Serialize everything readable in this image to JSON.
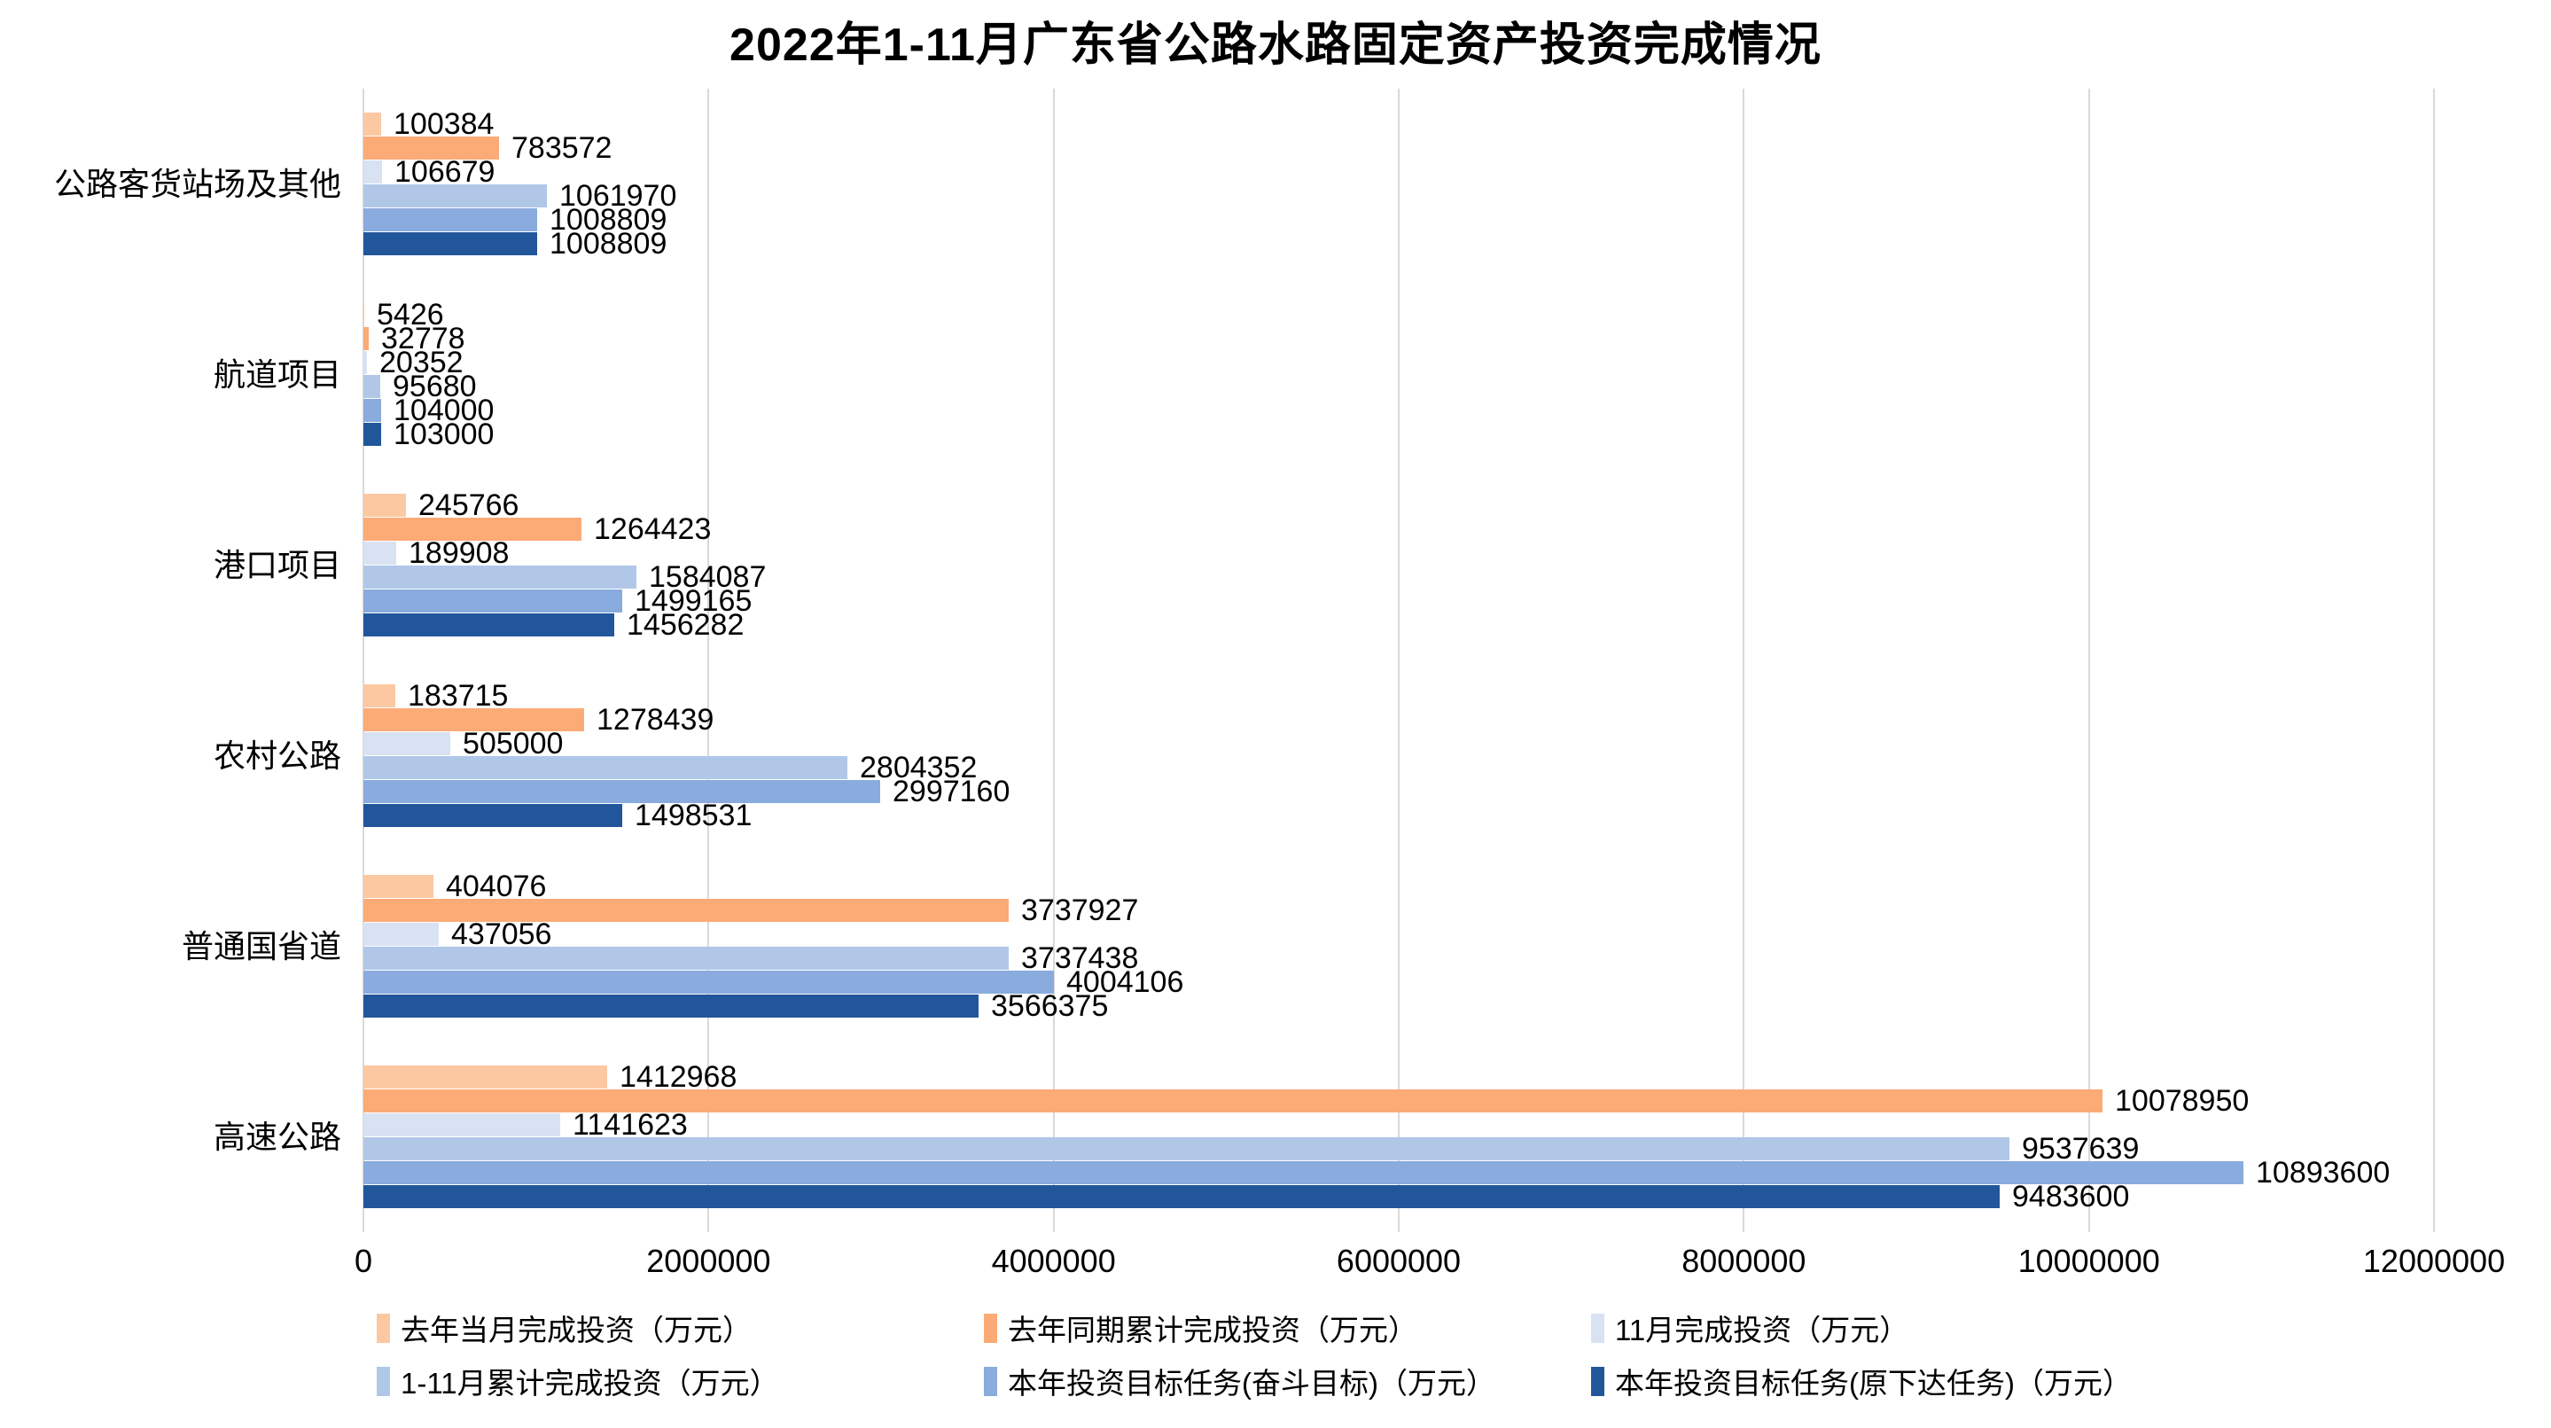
{
  "chart_data": {
    "type": "bar",
    "orientation": "horizontal-grouped",
    "title": "2022年1-11月广东省公路水路固定资产投资完成情况",
    "categories_top_to_bottom": [
      "公路客货站场及其他",
      "航道项目",
      "港口项目",
      "农村公路",
      "普通国省道",
      "高速公路"
    ],
    "series": [
      {
        "name": "去年当月完成投资（万元）",
        "color": "#FCC8A2",
        "values": [
          100384,
          5426,
          245766,
          183715,
          404076,
          1412968
        ]
      },
      {
        "name": "去年同期累计完成投资（万元）",
        "color": "#FCAA76",
        "values": [
          783572,
          32778,
          1264423,
          1278439,
          3737927,
          10078950
        ]
      },
      {
        "name": "11月完成投资（万元）",
        "color": "#D9E2F3",
        "values": [
          106679,
          20352,
          189908,
          505000,
          437056,
          1141623
        ]
      },
      {
        "name": "1-11月累计完成投资（万元）",
        "color": "#B0C7E8",
        "values": [
          1061970,
          95680,
          1584087,
          2804352,
          3737438,
          9537639
        ]
      },
      {
        "name": "本年投资目标任务(奋斗目标)（万元）",
        "color": "#89ABDE",
        "values": [
          1008809,
          104000,
          1499165,
          2997160,
          4004106,
          10893600
        ]
      },
      {
        "name": "本年投资目标任务(原下达任务)（万元）",
        "color": "#21569B",
        "values": [
          1008809,
          103000,
          1456282,
          1498531,
          3566375,
          9483600
        ]
      }
    ],
    "x_axis": {
      "min": 0,
      "max": 12000000,
      "tick_step": 2000000,
      "tick_labels": [
        "0",
        "2000000",
        "4000000",
        "6000000",
        "8000000",
        "10000000",
        "12000000"
      ]
    },
    "grid": "vertical-only",
    "legend_position": "bottom-two-rows",
    "colors": {
      "background": "#FFFFFF",
      "gridline": "#D9D9D9",
      "text": "#000000"
    }
  }
}
